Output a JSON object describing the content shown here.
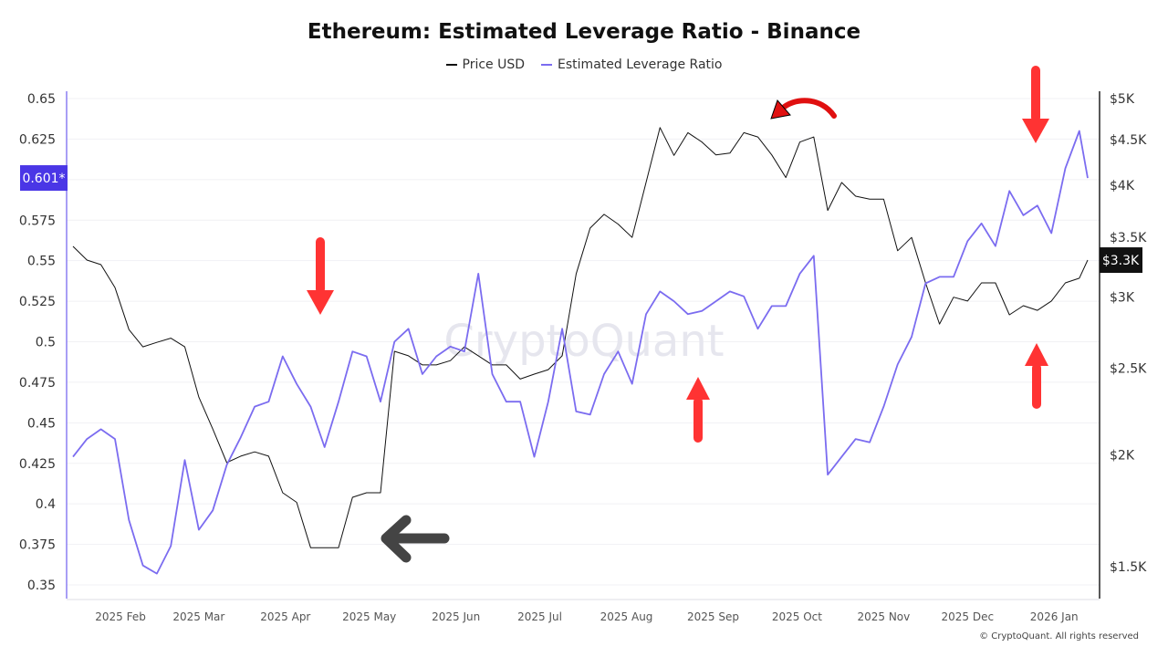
{
  "chart_data": {
    "type": "line",
    "title": "Ethereum: Estimated Leverage Ratio - Binance",
    "legend_placement": "top-center",
    "grid": "horizontal",
    "y_left": {
      "ticks": [
        "0.35",
        "0.375",
        "0.4",
        "0.425",
        "0.45",
        "0.475",
        "0.5",
        "0.525",
        "0.55",
        "0.575",
        "0.6",
        "0.625",
        "0.65"
      ],
      "range": [
        0.35,
        0.65
      ],
      "current_label": "0.601*"
    },
    "y_right": {
      "scale": "log",
      "ticks": [
        "$1.5K",
        "$2K",
        "$2.5K",
        "$3K",
        "$3.5K",
        "$4K",
        "$4.5K",
        "$5K"
      ],
      "tick_values": [
        1500,
        2000,
        2500,
        3000,
        3500,
        4000,
        4500,
        5000
      ],
      "range": [
        1500,
        5000
      ],
      "current_label": "$3.3K"
    },
    "x_ticks": [
      "2025 Feb",
      "2025 Mar",
      "2025 Apr",
      "2025 May",
      "2025 Jun",
      "2025 Jul",
      "2025 Aug",
      "2025 Sep",
      "2025 Oct",
      "2025 Nov",
      "2025 Dec",
      "2026 Jan"
    ],
    "x_tick_dates": [
      "2025-02-01",
      "2025-03-01",
      "2025-04-01",
      "2025-05-01",
      "2025-06-01",
      "2025-07-01",
      "2025-08-01",
      "2025-09-01",
      "2025-10-01",
      "2025-11-01",
      "2025-12-01",
      "2026-01-01"
    ],
    "x_range": [
      "2025-01-15",
      "2026-01-13"
    ],
    "x": [
      "2025-01-15",
      "2025-01-20",
      "2025-01-25",
      "2025-01-30",
      "2025-02-04",
      "2025-02-09",
      "2025-02-14",
      "2025-02-19",
      "2025-02-24",
      "2025-03-01",
      "2025-03-06",
      "2025-03-11",
      "2025-03-16",
      "2025-03-21",
      "2025-03-26",
      "2025-03-31",
      "2025-04-05",
      "2025-04-10",
      "2025-04-15",
      "2025-04-20",
      "2025-04-25",
      "2025-04-30",
      "2025-05-05",
      "2025-05-10",
      "2025-05-15",
      "2025-05-20",
      "2025-05-25",
      "2025-05-30",
      "2025-06-04",
      "2025-06-09",
      "2025-06-14",
      "2025-06-19",
      "2025-06-24",
      "2025-06-29",
      "2025-07-04",
      "2025-07-09",
      "2025-07-14",
      "2025-07-19",
      "2025-07-24",
      "2025-07-29",
      "2025-08-03",
      "2025-08-08",
      "2025-08-13",
      "2025-08-18",
      "2025-08-23",
      "2025-08-28",
      "2025-09-02",
      "2025-09-07",
      "2025-09-12",
      "2025-09-17",
      "2025-09-22",
      "2025-09-27",
      "2025-10-02",
      "2025-10-07",
      "2025-10-12",
      "2025-10-17",
      "2025-10-22",
      "2025-10-27",
      "2025-11-01",
      "2025-11-06",
      "2025-11-11",
      "2025-11-16",
      "2025-11-21",
      "2025-11-26",
      "2025-12-01",
      "2025-12-06",
      "2025-12-11",
      "2025-12-16",
      "2025-12-21",
      "2025-12-26",
      "2025-12-31",
      "2026-01-05",
      "2026-01-10",
      "2026-01-13"
    ],
    "series": [
      {
        "name": "Price USD",
        "axis": "right",
        "color": "#111111",
        "values": [
          3419,
          3300,
          3262,
          3075,
          2760,
          2640,
          2671,
          2700,
          2640,
          2320,
          2137,
          1960,
          1993,
          2015,
          1993,
          1814,
          1770,
          1575,
          1575,
          1575,
          1793,
          1814,
          1814,
          2610,
          2580,
          2520,
          2520,
          2548,
          2640,
          2580,
          2520,
          2520,
          2430,
          2461,
          2490,
          2580,
          3185,
          3583,
          3712,
          3620,
          3498,
          4029,
          4640,
          4320,
          4580,
          4470,
          4325,
          4345,
          4580,
          4530,
          4325,
          4080,
          4470,
          4530,
          3750,
          4029,
          3890,
          3860,
          3860,
          3380,
          3498,
          3112,
          2800,
          3000,
          2970,
          3112,
          3112,
          2867,
          2935,
          2900,
          2970,
          3112,
          3150,
          3300
        ]
      },
      {
        "name": "Estimated Leverage Ratio",
        "axis": "left",
        "color": "#7b6cf0",
        "values": [
          0.429,
          0.44,
          0.446,
          0.44,
          0.39,
          0.362,
          0.357,
          0.374,
          0.427,
          0.384,
          0.396,
          0.424,
          0.441,
          0.46,
          0.463,
          0.491,
          0.474,
          0.46,
          0.435,
          0.463,
          0.494,
          0.491,
          0.463,
          0.5,
          0.508,
          0.48,
          0.491,
          0.497,
          0.494,
          0.542,
          0.48,
          0.463,
          0.463,
          0.429,
          0.463,
          0.508,
          0.457,
          0.455,
          0.48,
          0.494,
          0.474,
          0.517,
          0.531,
          0.525,
          0.517,
          0.519,
          0.525,
          0.531,
          0.528,
          0.508,
          0.522,
          0.522,
          0.542,
          0.553,
          0.418,
          0.429,
          0.44,
          0.438,
          0.46,
          0.486,
          0.503,
          0.536,
          0.54,
          0.54,
          0.562,
          0.573,
          0.559,
          0.593,
          0.578,
          0.584,
          0.567,
          0.607,
          0.63,
          0.601
        ]
      }
    ]
  },
  "watermark": "CryptoQuant",
  "footer": "© CryptoQuant. All rights reserved",
  "annotations": [
    {
      "icon": "red-arrow-down-icon",
      "color": "#ff3333"
    },
    {
      "icon": "red-arrow-down-icon",
      "color": "#ff3333"
    },
    {
      "icon": "red-arrow-up-icon",
      "color": "#ff3333"
    },
    {
      "icon": "red-arrow-up-icon",
      "color": "#ff3333"
    },
    {
      "icon": "black-arrow-left-icon",
      "color": "#444444"
    },
    {
      "icon": "red-curved-arrow-icon",
      "color": "#e01010"
    }
  ],
  "colors": {
    "leverage": "#7b6cf0",
    "price": "#111111",
    "badge": "#4a36e6",
    "price_badge": "#111111"
  }
}
